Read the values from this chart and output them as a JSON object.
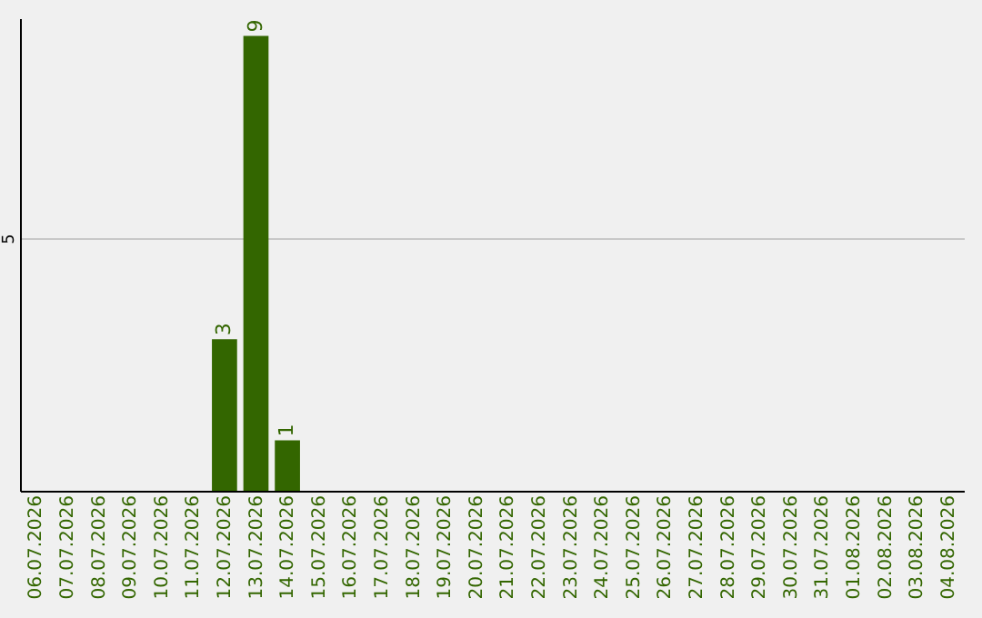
{
  "chart_data": {
    "type": "bar",
    "categories": [
      "06.07.2026",
      "07.07.2026",
      "08.07.2026",
      "09.07.2026",
      "10.07.2026",
      "11.07.2026",
      "12.07.2026",
      "13.07.2026",
      "14.07.2026",
      "15.07.2026",
      "16.07.2026",
      "17.07.2026",
      "18.07.2026",
      "19.07.2026",
      "20.07.2026",
      "21.07.2026",
      "22.07.2026",
      "23.07.2026",
      "24.07.2026",
      "25.07.2026",
      "26.07.2026",
      "27.07.2026",
      "28.07.2026",
      "29.07.2026",
      "30.07.2026",
      "31.07.2026",
      "01.08.2026",
      "02.08.2026",
      "03.08.2026",
      "04.08.2026"
    ],
    "values": [
      0,
      0,
      0,
      0,
      0,
      0,
      3,
      9,
      1,
      0,
      0,
      0,
      0,
      0,
      0,
      0,
      0,
      0,
      0,
      0,
      0,
      0,
      0,
      0,
      0,
      0,
      0,
      0,
      0,
      0
    ],
    "value_labels": [
      null,
      null,
      null,
      null,
      null,
      null,
      "3",
      "9",
      "1",
      null,
      null,
      null,
      null,
      null,
      null,
      null,
      null,
      null,
      null,
      null,
      null,
      null,
      null,
      null,
      null,
      null,
      null,
      null,
      null,
      null
    ],
    "color": "#336600",
    "ylim": [
      0,
      9.35
    ],
    "yticks": [
      5
    ],
    "grid": "y"
  }
}
